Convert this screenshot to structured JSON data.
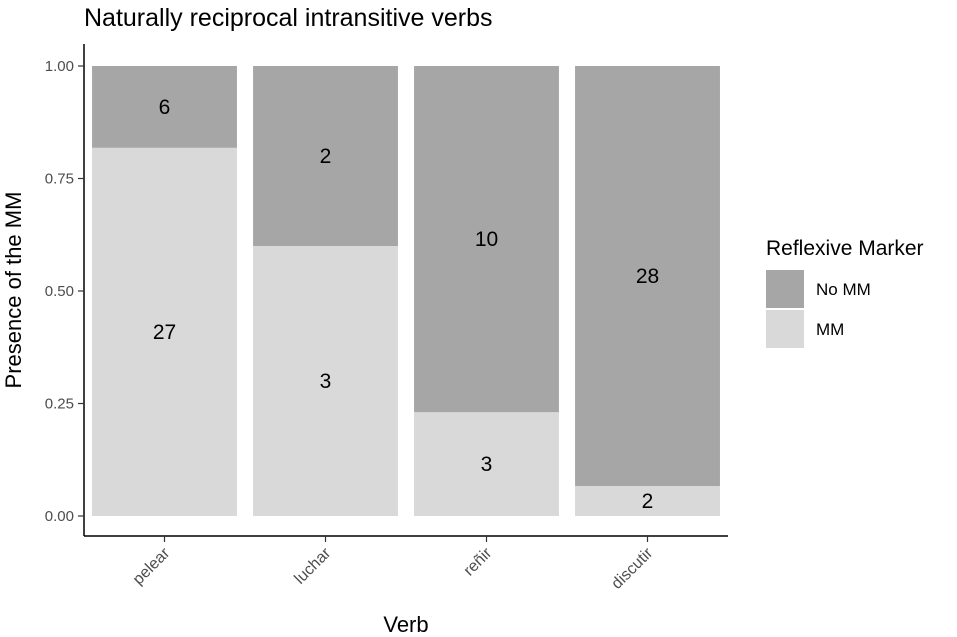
{
  "chart_data": {
    "type": "bar",
    "stacked": "proportional",
    "title": "Naturally reciprocal intransitive verbs",
    "xlabel": "Verb",
    "ylabel": "Presence of the MM",
    "ylim": [
      0,
      1
    ],
    "yticks": [
      "0.00",
      "0.25",
      "0.50",
      "0.75",
      "1.00"
    ],
    "categories": [
      "pelear",
      "luchar",
      "reñir",
      "discutir"
    ],
    "series": [
      {
        "name": "MM",
        "color": "#d9d9d9",
        "counts": [
          27,
          3,
          3,
          2
        ]
      },
      {
        "name": "No MM",
        "color": "#a6a6a6",
        "counts": [
          6,
          2,
          10,
          28
        ]
      }
    ],
    "legend": {
      "title": "Reflexive Marker",
      "position": "right",
      "order": [
        "No MM",
        "MM"
      ]
    },
    "grid": false
  }
}
